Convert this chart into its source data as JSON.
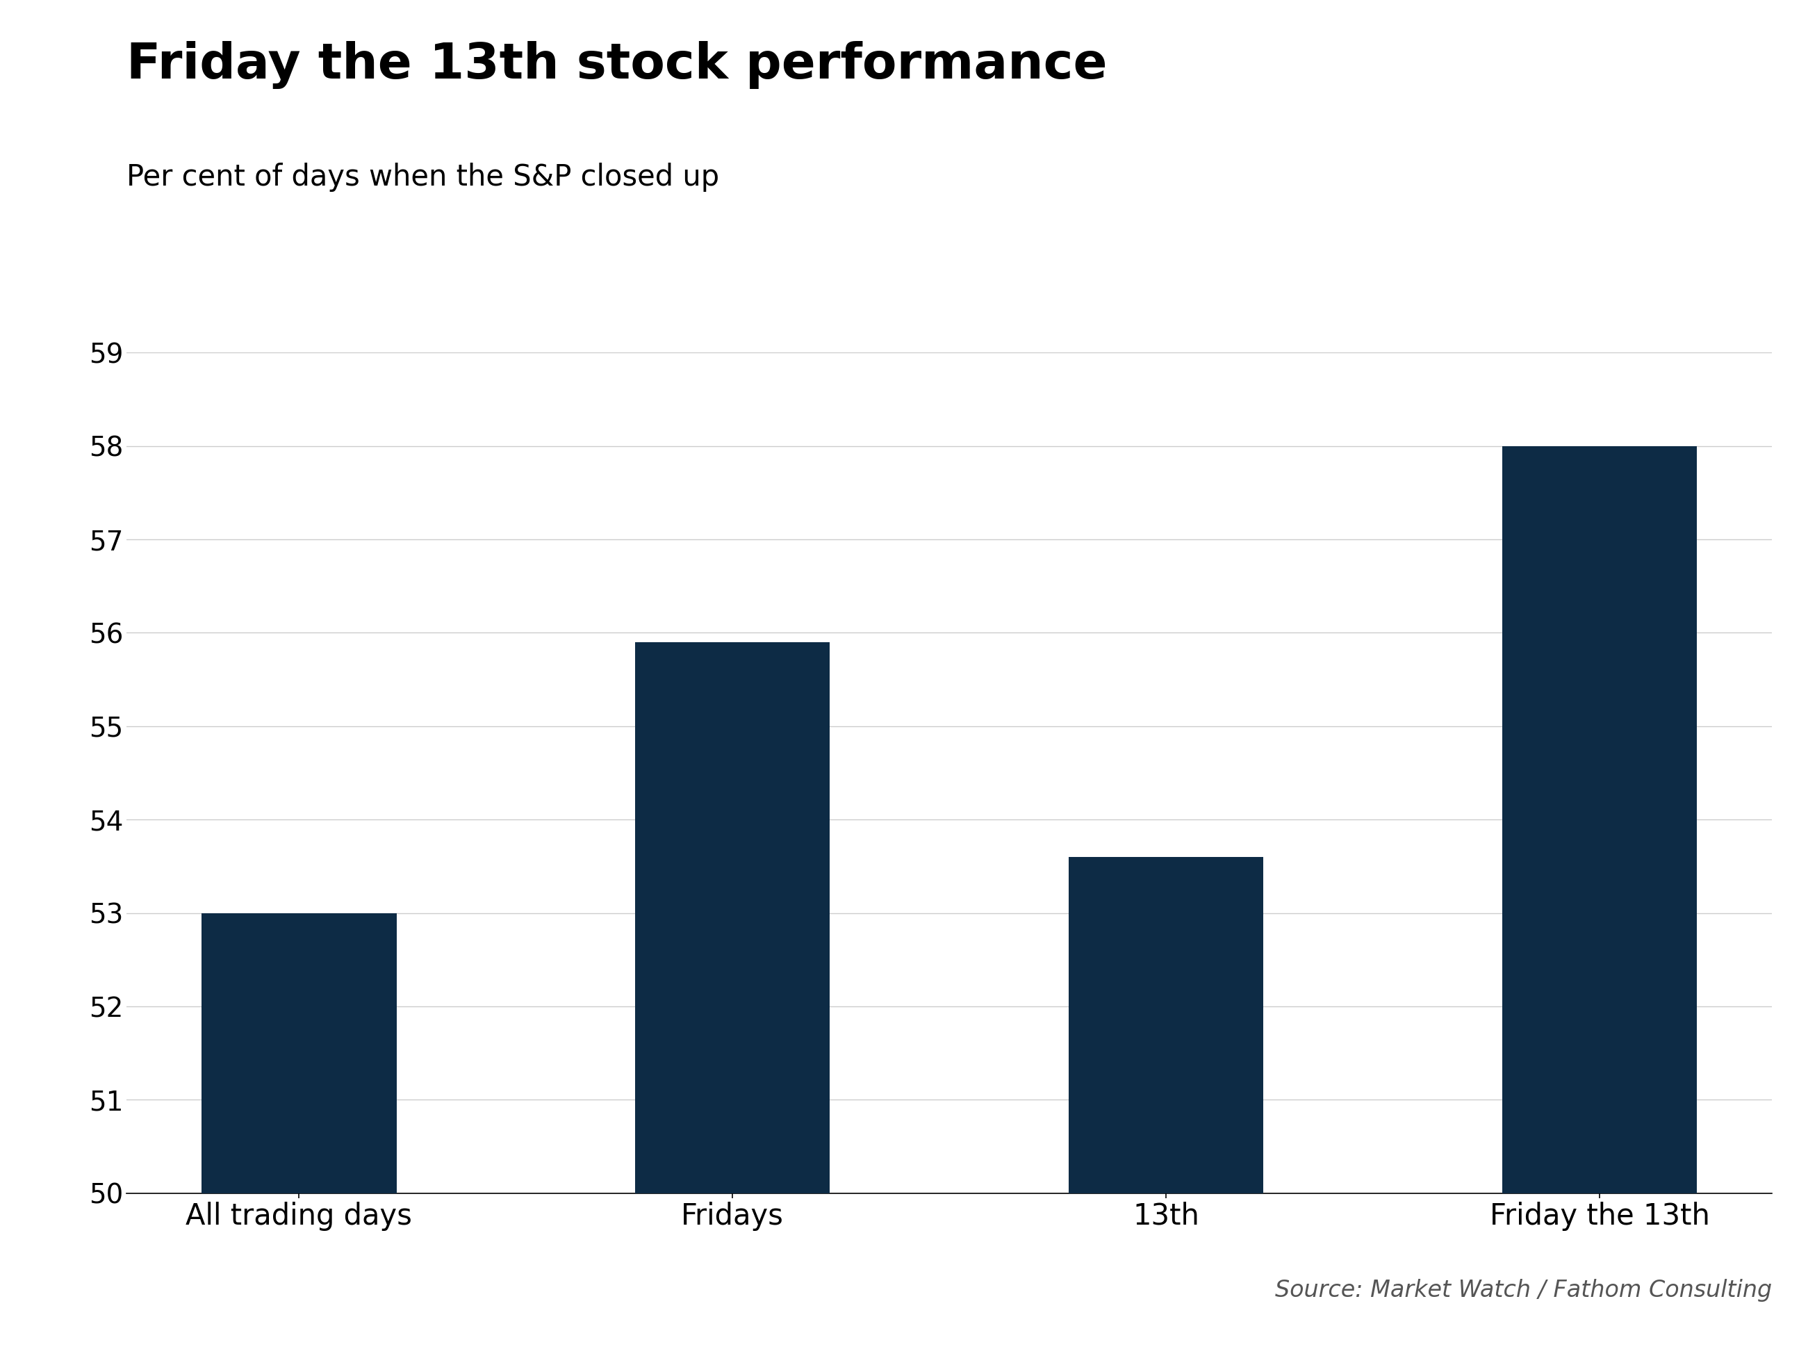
{
  "title": "Friday the 13th stock performance",
  "subtitle": "Per cent of days when the S&P closed up",
  "categories": [
    "All trading days",
    "Fridays",
    "13th",
    "Friday the 13th"
  ],
  "values": [
    53.0,
    55.9,
    53.6,
    58.0
  ],
  "bar_color": "#0d2b45",
  "ylim": [
    50,
    59
  ],
  "yticks": [
    50,
    51,
    52,
    53,
    54,
    55,
    56,
    57,
    58,
    59
  ],
  "source_text": "Source: Market Watch / Fathom Consulting",
  "background_color": "#ffffff",
  "title_fontsize": 52,
  "subtitle_fontsize": 30,
  "tick_fontsize": 28,
  "source_fontsize": 24,
  "xlabel_fontsize": 30,
  "bar_width": 0.45
}
